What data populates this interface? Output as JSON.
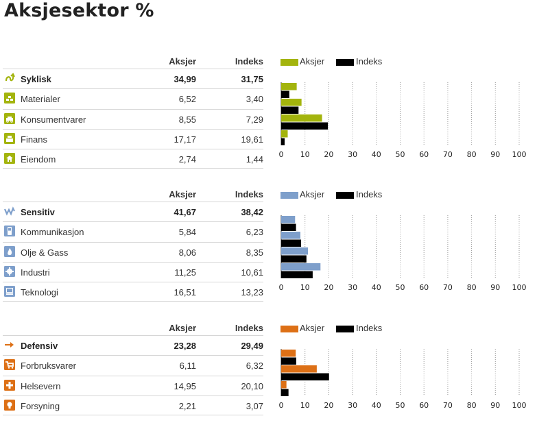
{
  "title": "Aksjesektor %",
  "legend": {
    "aksjer": "Aksjer",
    "indeks": "Indeks"
  },
  "colors": {
    "syklisk": "#a3b40d",
    "sensitiv": "#7e9fcb",
    "defensiv": "#dd7016",
    "indeks": "#000000"
  },
  "sections": [
    {
      "key": "syklisk",
      "header": {
        "aksjer": "Aksjer",
        "indeks": "Indeks"
      },
      "main": {
        "label": "Syklisk",
        "aksjer": "34,99",
        "indeks": "31,75",
        "icon": "cyclical-arrow-icon"
      },
      "rows": [
        {
          "label": "Materialer",
          "aksjer": "6,52",
          "indeks": "3,40",
          "icon": "materials-bricks-icon"
        },
        {
          "label": "Konsumentvarer",
          "aksjer": "8,55",
          "indeks": "7,29",
          "icon": "car-icon"
        },
        {
          "label": "Finans",
          "aksjer": "17,17",
          "indeks": "19,61",
          "icon": "cash-register-icon"
        },
        {
          "label": "Eiendom",
          "aksjer": "2,74",
          "indeks": "1,44",
          "icon": "house-icon"
        }
      ]
    },
    {
      "key": "sensitiv",
      "header": {
        "aksjer": "Aksjer",
        "indeks": "Indeks"
      },
      "main": {
        "label": "Sensitiv",
        "aksjer": "41,67",
        "indeks": "38,42",
        "icon": "sensitive-wave-icon"
      },
      "rows": [
        {
          "label": "Kommunikasjon",
          "aksjer": "5,84",
          "indeks": "6,23",
          "icon": "phone-icon"
        },
        {
          "label": "Olje & Gass",
          "aksjer": "8,06",
          "indeks": "8,35",
          "icon": "flame-icon"
        },
        {
          "label": "Industri",
          "aksjer": "11,25",
          "indeks": "10,61",
          "icon": "gear-icon"
        },
        {
          "label": "Teknologi",
          "aksjer": "16,51",
          "indeks": "13,23",
          "icon": "computer-icon"
        }
      ]
    },
    {
      "key": "defensiv",
      "header": {
        "aksjer": "Aksjer",
        "indeks": "Indeks"
      },
      "main": {
        "label": "Defensiv",
        "aksjer": "23,28",
        "indeks": "29,49",
        "icon": "defensive-arrow-icon"
      },
      "rows": [
        {
          "label": "Forbruksvarer",
          "aksjer": "6,11",
          "indeks": "6,32",
          "icon": "shopping-cart-icon"
        },
        {
          "label": "Helsevern",
          "aksjer": "14,95",
          "indeks": "20,10",
          "icon": "health-cross-icon"
        },
        {
          "label": "Forsyning",
          "aksjer": "2,21",
          "indeks": "3,07",
          "icon": "light-bulb-icon"
        }
      ]
    }
  ],
  "chart_data": [
    {
      "type": "bar",
      "orientation": "horizontal",
      "categories": [
        "Materialer",
        "Konsumentvarer",
        "Finans",
        "Eiendom"
      ],
      "series": [
        {
          "name": "Aksjer",
          "values": [
            6.52,
            8.55,
            17.17,
            2.74
          ]
        },
        {
          "name": "Indeks",
          "values": [
            3.4,
            7.29,
            19.61,
            1.44
          ]
        }
      ],
      "xlim": [
        0,
        100
      ],
      "xticks": [
        "0",
        "10",
        "20",
        "30",
        "40",
        "50",
        "60",
        "70",
        "80",
        "90",
        "100"
      ],
      "grid": "vertical-dotted",
      "legend": "top"
    },
    {
      "type": "bar",
      "orientation": "horizontal",
      "categories": [
        "Kommunikasjon",
        "Olje & Gass",
        "Industri",
        "Teknologi"
      ],
      "series": [
        {
          "name": "Aksjer",
          "values": [
            5.84,
            8.06,
            11.25,
            16.51
          ]
        },
        {
          "name": "Indeks",
          "values": [
            6.23,
            8.35,
            10.61,
            13.23
          ]
        }
      ],
      "xlim": [
        0,
        100
      ],
      "xticks": [
        "0",
        "10",
        "20",
        "30",
        "40",
        "50",
        "60",
        "70",
        "80",
        "90",
        "100"
      ],
      "grid": "vertical-dotted",
      "legend": "top"
    },
    {
      "type": "bar",
      "orientation": "horizontal",
      "categories": [
        "Forbruksvarer",
        "Helsevern",
        "Forsyning"
      ],
      "series": [
        {
          "name": "Aksjer",
          "values": [
            6.11,
            14.95,
            2.21
          ]
        },
        {
          "name": "Indeks",
          "values": [
            6.32,
            20.1,
            3.07
          ]
        }
      ],
      "xlim": [
        0,
        100
      ],
      "xticks": [
        "0",
        "10",
        "20",
        "30",
        "40",
        "50",
        "60",
        "70",
        "80",
        "90",
        "100"
      ],
      "grid": "vertical-dotted",
      "legend": "top"
    }
  ]
}
